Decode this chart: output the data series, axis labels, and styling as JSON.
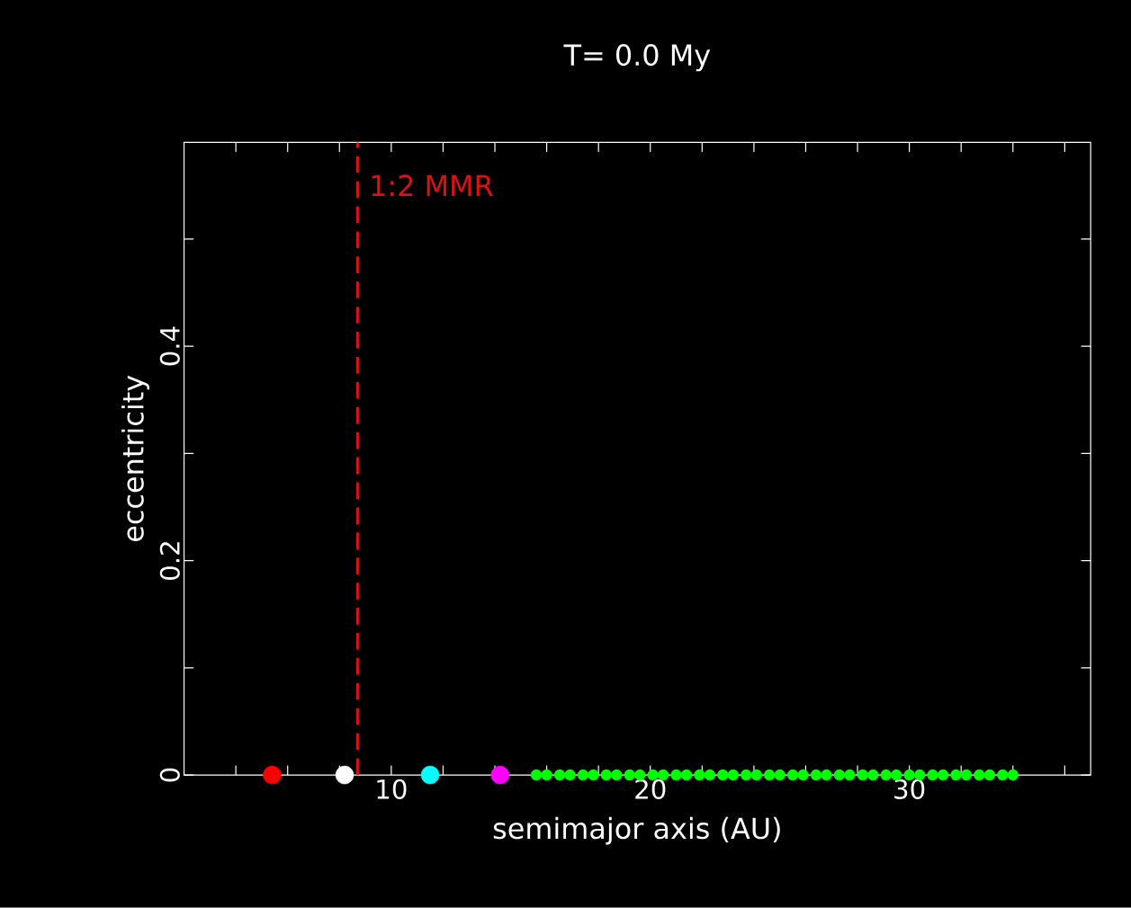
{
  "chart_data": {
    "type": "scatter",
    "title": "T=     0.0 My",
    "xlabel": "semimajor axis (AU)",
    "ylabel": "eccentricity",
    "xlim": [
      2,
      37
    ],
    "ylim": [
      0,
      0.59
    ],
    "xticks": [
      {
        "value": 4,
        "label": null
      },
      {
        "value": 6,
        "label": null
      },
      {
        "value": 8,
        "label": null
      },
      10,
      {
        "value": 12,
        "label": null
      },
      {
        "value": 14,
        "label": null
      },
      {
        "value": 16,
        "label": null
      },
      {
        "value": 18,
        "label": null
      },
      20,
      {
        "value": 22,
        "label": null
      },
      {
        "value": 24,
        "label": null
      },
      {
        "value": 26,
        "label": null
      },
      {
        "value": 28,
        "label": null
      },
      30,
      {
        "value": 32,
        "label": null
      },
      {
        "value": 34,
        "label": null
      },
      {
        "value": 36,
        "label": null
      }
    ],
    "yticks": [
      0,
      {
        "value": 0.1,
        "label": null
      },
      0.2,
      {
        "value": 0.3,
        "label": null
      },
      0.4,
      {
        "value": 0.5,
        "label": null
      }
    ],
    "grid": false,
    "series": [
      {
        "color": "#ff0000",
        "x": [
          5.4
        ],
        "values": [
          0
        ]
      },
      {
        "color": "#ffffff",
        "x": [
          8.2
        ],
        "values": [
          0
        ]
      },
      {
        "color": "#00ffff",
        "x": [
          11.5
        ],
        "values": [
          0
        ]
      },
      {
        "color": "#ff00ff",
        "x": [
          14.2
        ],
        "values": [
          0
        ]
      },
      {
        "color": "#00ff00",
        "x": [
          15.6,
          16.0,
          16.5,
          16.9,
          17.4,
          17.8,
          18.3,
          18.7,
          19.2,
          19.6,
          20.1,
          20.5,
          21.0,
          21.4,
          21.9,
          22.3,
          22.8,
          23.2,
          23.7,
          24.1,
          24.6,
          25.0,
          25.5,
          25.9,
          26.4,
          26.8,
          27.3,
          27.7,
          28.2,
          28.6,
          29.1,
          29.5,
          30.0,
          30.4,
          30.9,
          31.3,
          31.8,
          32.2,
          32.7,
          33.1,
          33.6,
          34.0
        ],
        "values": [
          0,
          0,
          0,
          0,
          0,
          0,
          0,
          0,
          0,
          0,
          0,
          0,
          0,
          0,
          0,
          0,
          0,
          0,
          0,
          0,
          0,
          0,
          0,
          0,
          0,
          0,
          0,
          0,
          0,
          0,
          0,
          0,
          0,
          0,
          0,
          0,
          0,
          0,
          0,
          0,
          0,
          0
        ]
      }
    ],
    "ref_lines": [
      {
        "axis": "x",
        "value": 8.7,
        "color": "#e01010",
        "line_style": "dashed"
      }
    ],
    "annotations": [
      {
        "text": "1:2 MMR",
        "x": 8.7,
        "y": 0.55
      }
    ]
  }
}
